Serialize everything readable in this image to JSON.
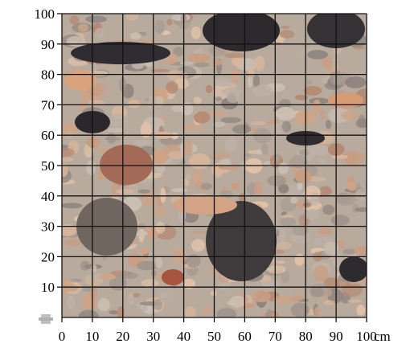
{
  "figure": {
    "kind": "photo-with-measurement-grid",
    "photo_subject": "rock-conglomerate-texture",
    "x_unit": "cm",
    "x_ticks": [
      "0",
      "10",
      "20",
      "30",
      "40",
      "50",
      "60",
      "70",
      "80",
      "90",
      "100"
    ],
    "y_ticks": [
      "10",
      "20",
      "30",
      "40",
      "50",
      "60",
      "70",
      "80",
      "90",
      "100"
    ],
    "x_range": [
      0,
      100
    ],
    "y_range": [
      0,
      100
    ],
    "grid_step": 10,
    "grid_color": "#111111",
    "matrix_color": "#b9aca0"
  }
}
